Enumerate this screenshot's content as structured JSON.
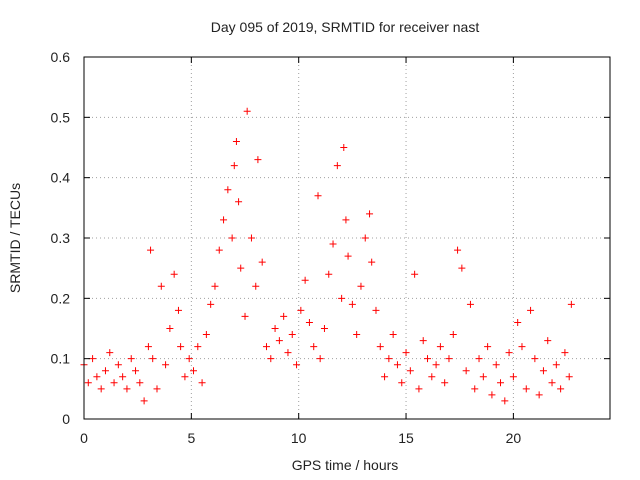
{
  "chart_data": {
    "type": "scatter",
    "title": "Day 095 of 2019, SRMTID for receiver nast",
    "xlabel": "GPS time / hours",
    "ylabel": "SRMTID / TECUs",
    "xlim": [
      0,
      24.5
    ],
    "ylim": [
      0,
      0.6
    ],
    "xticks": [
      0,
      5,
      10,
      15,
      20
    ],
    "xtick_labels": [
      "0",
      "5",
      "10",
      "15",
      "20"
    ],
    "yticks": [
      0,
      0.1,
      0.2,
      0.3,
      0.4,
      0.5,
      0.6
    ],
    "ytick_labels": [
      "0",
      "0.1",
      "0.2",
      "0.3",
      "0.4",
      "0.5",
      "0.6"
    ],
    "grid": true,
    "marker": "+",
    "marker_color": "#ff0000",
    "series": [
      {
        "name": "SRMTID",
        "x": [
          0.0,
          0.2,
          0.4,
          0.6,
          0.8,
          1.0,
          1.2,
          1.4,
          1.6,
          1.8,
          2.0,
          2.2,
          2.4,
          2.6,
          2.8,
          3.0,
          3.1,
          3.2,
          3.4,
          3.6,
          3.8,
          4.0,
          4.2,
          4.4,
          4.5,
          4.7,
          4.9,
          5.1,
          5.3,
          5.5,
          5.7,
          5.9,
          6.1,
          6.3,
          6.5,
          6.7,
          6.9,
          7.0,
          7.1,
          7.2,
          7.3,
          7.5,
          7.6,
          7.8,
          8.0,
          8.1,
          8.3,
          8.5,
          8.7,
          8.9,
          9.1,
          9.3,
          9.5,
          9.7,
          9.9,
          10.1,
          10.3,
          10.5,
          10.7,
          10.9,
          11.0,
          11.2,
          11.4,
          11.6,
          11.8,
          12.0,
          12.1,
          12.2,
          12.3,
          12.5,
          12.7,
          12.9,
          13.1,
          13.3,
          13.4,
          13.6,
          13.8,
          14.0,
          14.2,
          14.4,
          14.6,
          14.8,
          15.0,
          15.2,
          15.4,
          15.6,
          15.8,
          16.0,
          16.2,
          16.4,
          16.6,
          16.8,
          17.0,
          17.2,
          17.4,
          17.6,
          17.8,
          18.0,
          18.2,
          18.4,
          18.6,
          18.8,
          19.0,
          19.2,
          19.4,
          19.6,
          19.8,
          20.0,
          20.2,
          20.4,
          20.6,
          20.8,
          21.0,
          21.2,
          21.4,
          21.6,
          21.8,
          22.0,
          22.2,
          22.4,
          22.6,
          22.7
        ],
        "y": [
          0.09,
          0.06,
          0.1,
          0.07,
          0.05,
          0.08,
          0.11,
          0.06,
          0.09,
          0.07,
          0.05,
          0.1,
          0.08,
          0.06,
          0.03,
          0.12,
          0.28,
          0.1,
          0.05,
          0.22,
          0.09,
          0.15,
          0.24,
          0.18,
          0.12,
          0.07,
          0.1,
          0.08,
          0.12,
          0.06,
          0.14,
          0.19,
          0.22,
          0.28,
          0.33,
          0.38,
          0.3,
          0.42,
          0.46,
          0.36,
          0.25,
          0.17,
          0.51,
          0.3,
          0.22,
          0.43,
          0.26,
          0.12,
          0.1,
          0.15,
          0.13,
          0.17,
          0.11,
          0.14,
          0.09,
          0.18,
          0.23,
          0.16,
          0.12,
          0.37,
          0.1,
          0.15,
          0.24,
          0.29,
          0.42,
          0.2,
          0.45,
          0.33,
          0.27,
          0.19,
          0.14,
          0.22,
          0.3,
          0.34,
          0.26,
          0.18,
          0.12,
          0.07,
          0.1,
          0.14,
          0.09,
          0.06,
          0.11,
          0.08,
          0.24,
          0.05,
          0.13,
          0.1,
          0.07,
          0.09,
          0.12,
          0.06,
          0.1,
          0.14,
          0.28,
          0.25,
          0.08,
          0.19,
          0.05,
          0.1,
          0.07,
          0.12,
          0.04,
          0.09,
          0.06,
          0.03,
          0.11,
          0.07,
          0.16,
          0.12,
          0.05,
          0.18,
          0.1,
          0.04,
          0.08,
          0.13,
          0.06,
          0.09,
          0.05,
          0.11,
          0.07,
          0.19
        ]
      }
    ]
  }
}
